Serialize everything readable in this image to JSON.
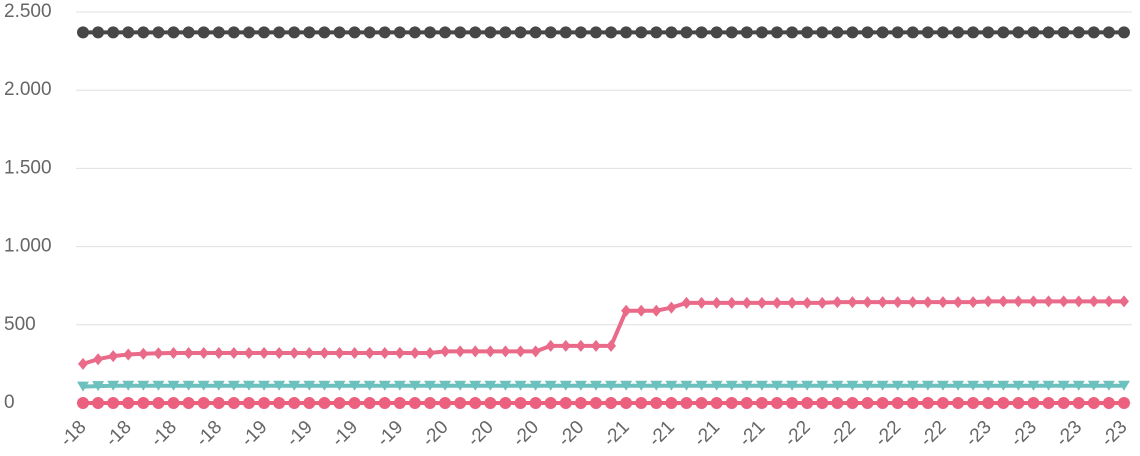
{
  "chart_data": {
    "type": "line",
    "categories": [
      "-18",
      null,
      null,
      "-18",
      null,
      null,
      "-18",
      null,
      null,
      "-18",
      null,
      null,
      "-19",
      null,
      null,
      "-19",
      null,
      null,
      "-19",
      null,
      null,
      "-19",
      null,
      null,
      "-20",
      null,
      null,
      "-20",
      null,
      null,
      "-20",
      null,
      null,
      "-20",
      null,
      null,
      "-21",
      null,
      null,
      "-21",
      null,
      null,
      "-21",
      null,
      null,
      "-21",
      null,
      null,
      "-22",
      null,
      null,
      "-22",
      null,
      null,
      "-22",
      null,
      null,
      "-22",
      null,
      null,
      "-23",
      null,
      null,
      "-23",
      null,
      null,
      "-23",
      null,
      null,
      "-23"
    ],
    "series": [
      {
        "color": "#474747",
        "marker": "circle",
        "values": [
          2370,
          2370,
          2370,
          2370,
          2370,
          2370,
          2370,
          2370,
          2370,
          2370,
          2370,
          2370,
          2370,
          2370,
          2370,
          2370,
          2370,
          2370,
          2370,
          2370,
          2370,
          2370,
          2370,
          2370,
          2370,
          2370,
          2370,
          2370,
          2370,
          2370,
          2370,
          2370,
          2370,
          2370,
          2370,
          2370,
          2370,
          2370,
          2370,
          2370,
          2370,
          2370,
          2370,
          2370,
          2370,
          2370,
          2370,
          2370,
          2370,
          2370,
          2370,
          2370,
          2370,
          2370,
          2370,
          2370,
          2370,
          2370,
          2370,
          2370,
          2370,
          2370,
          2370,
          2370,
          2370,
          2370,
          2370,
          2370,
          2370,
          2370
        ]
      },
      {
        "color": "#e96a89",
        "marker": "diamond",
        "values": [
          250,
          280,
          300,
          310,
          315,
          318,
          320,
          320,
          320,
          320,
          320,
          320,
          320,
          320,
          320,
          320,
          320,
          320,
          320,
          320,
          320,
          320,
          320,
          320,
          330,
          330,
          330,
          330,
          330,
          330,
          330,
          365,
          365,
          365,
          365,
          365,
          590,
          590,
          590,
          610,
          640,
          640,
          640,
          640,
          640,
          640,
          640,
          640,
          640,
          640,
          645,
          645,
          645,
          645,
          645,
          645,
          645,
          645,
          645,
          645,
          650,
          650,
          650,
          650,
          650,
          650,
          650,
          650,
          650,
          650
        ]
      },
      {
        "color": "#6cc1be",
        "marker": "triangle",
        "values": [
          105,
          108,
          110,
          110,
          110,
          110,
          110,
          110,
          110,
          110,
          110,
          110,
          110,
          110,
          110,
          110,
          110,
          110,
          110,
          110,
          110,
          110,
          110,
          110,
          110,
          110,
          110,
          110,
          110,
          110,
          110,
          110,
          110,
          110,
          110,
          110,
          110,
          110,
          110,
          110,
          110,
          110,
          110,
          110,
          110,
          110,
          110,
          110,
          110,
          110,
          110,
          110,
          110,
          110,
          110,
          110,
          110,
          110,
          110,
          110,
          110,
          110,
          110,
          110,
          110,
          110,
          110,
          110,
          110,
          110
        ]
      },
      {
        "color": "#ec607f",
        "marker": "circle",
        "values": [
          0,
          0,
          0,
          0,
          0,
          0,
          0,
          0,
          0,
          0,
          0,
          0,
          0,
          0,
          0,
          0,
          0,
          0,
          0,
          0,
          0,
          0,
          0,
          0,
          0,
          0,
          0,
          0,
          0,
          0,
          0,
          0,
          0,
          0,
          0,
          0,
          0,
          0,
          0,
          0,
          0,
          0,
          0,
          0,
          0,
          0,
          0,
          0,
          0,
          0,
          0,
          0,
          0,
          0,
          0,
          0,
          0,
          0,
          0,
          0,
          0,
          0,
          0,
          0,
          0,
          0,
          0,
          0,
          0,
          0
        ]
      }
    ],
    "ylim": [
      0,
      2500
    ],
    "yticks": [
      {
        "value": 0,
        "label": "0"
      },
      {
        "value": 500,
        "label": "500"
      },
      {
        "value": 1000,
        "label": "1.000"
      },
      {
        "value": 1500,
        "label": "1.500"
      },
      {
        "value": 2000,
        "label": "2.000"
      },
      {
        "value": 2500,
        "label": "2.500"
      }
    ],
    "grid": true
  }
}
